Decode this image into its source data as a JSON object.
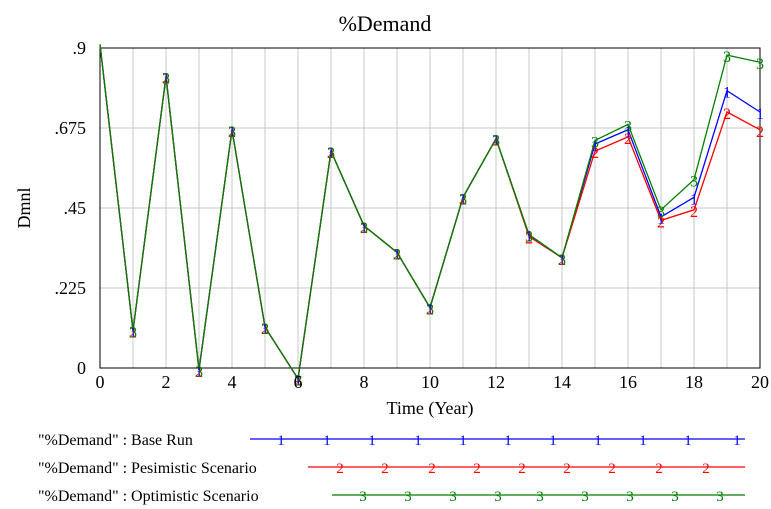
{
  "chart_data": {
    "type": "line",
    "title": "%Demand",
    "xlabel": "Time (Year)",
    "ylabel": "Dmnl",
    "xlim": [
      0,
      20
    ],
    "ylim": [
      0,
      0.9
    ],
    "x_ticks": [
      "0",
      "2",
      "4",
      "6",
      "8",
      "10",
      "12",
      "14",
      "16",
      "18",
      "20"
    ],
    "y_ticks": [
      {
        "value": 0,
        "label": "0"
      },
      {
        "value": 0.225,
        "label": ".225"
      },
      {
        "value": 0.45,
        "label": ".45"
      },
      {
        "value": 0.675,
        "label": ".675"
      },
      {
        "value": 0.9,
        "label": ".9"
      }
    ],
    "grid": true,
    "legend_position": "bottom",
    "series": [
      {
        "name": "\"%Demand\" : Base Run",
        "marker": "1",
        "color": "#0000ff",
        "x": [
          0,
          1,
          2,
          3,
          4,
          5,
          6,
          7,
          8,
          9,
          10,
          11,
          12,
          13,
          14,
          15,
          16,
          17,
          18,
          19,
          20
        ],
        "values": [
          0.91,
          0.105,
          0.82,
          -0.005,
          0.67,
          0.115,
          -0.03,
          0.61,
          0.4,
          0.325,
          0.17,
          0.48,
          0.645,
          0.375,
          0.31,
          0.63,
          0.67,
          0.425,
          0.48,
          0.78,
          0.72
        ]
      },
      {
        "name": "\"%Demand\" : Pesimistic Scenario",
        "marker": "2",
        "color": "#ff0000",
        "x": [
          0,
          1,
          2,
          3,
          4,
          5,
          6,
          7,
          8,
          9,
          10,
          11,
          12,
          13,
          14,
          15,
          16,
          17,
          18,
          19,
          20
        ],
        "values": [
          0.91,
          0.105,
          0.82,
          -0.005,
          0.67,
          0.115,
          -0.03,
          0.61,
          0.4,
          0.325,
          0.17,
          0.48,
          0.645,
          0.37,
          0.31,
          0.61,
          0.65,
          0.415,
          0.445,
          0.72,
          0.67
        ]
      },
      {
        "name": "\"%Demand\" : Optimistic Scenario",
        "marker": "3",
        "color": "#008000",
        "x": [
          0,
          1,
          2,
          3,
          4,
          5,
          6,
          7,
          8,
          9,
          10,
          11,
          12,
          13,
          14,
          15,
          16,
          17,
          18,
          19,
          20
        ],
        "values": [
          0.91,
          0.105,
          0.82,
          -0.005,
          0.67,
          0.115,
          -0.03,
          0.61,
          0.4,
          0.325,
          0.17,
          0.48,
          0.645,
          0.375,
          0.31,
          0.64,
          0.685,
          0.445,
          0.53,
          0.88,
          0.86
        ]
      }
    ]
  }
}
